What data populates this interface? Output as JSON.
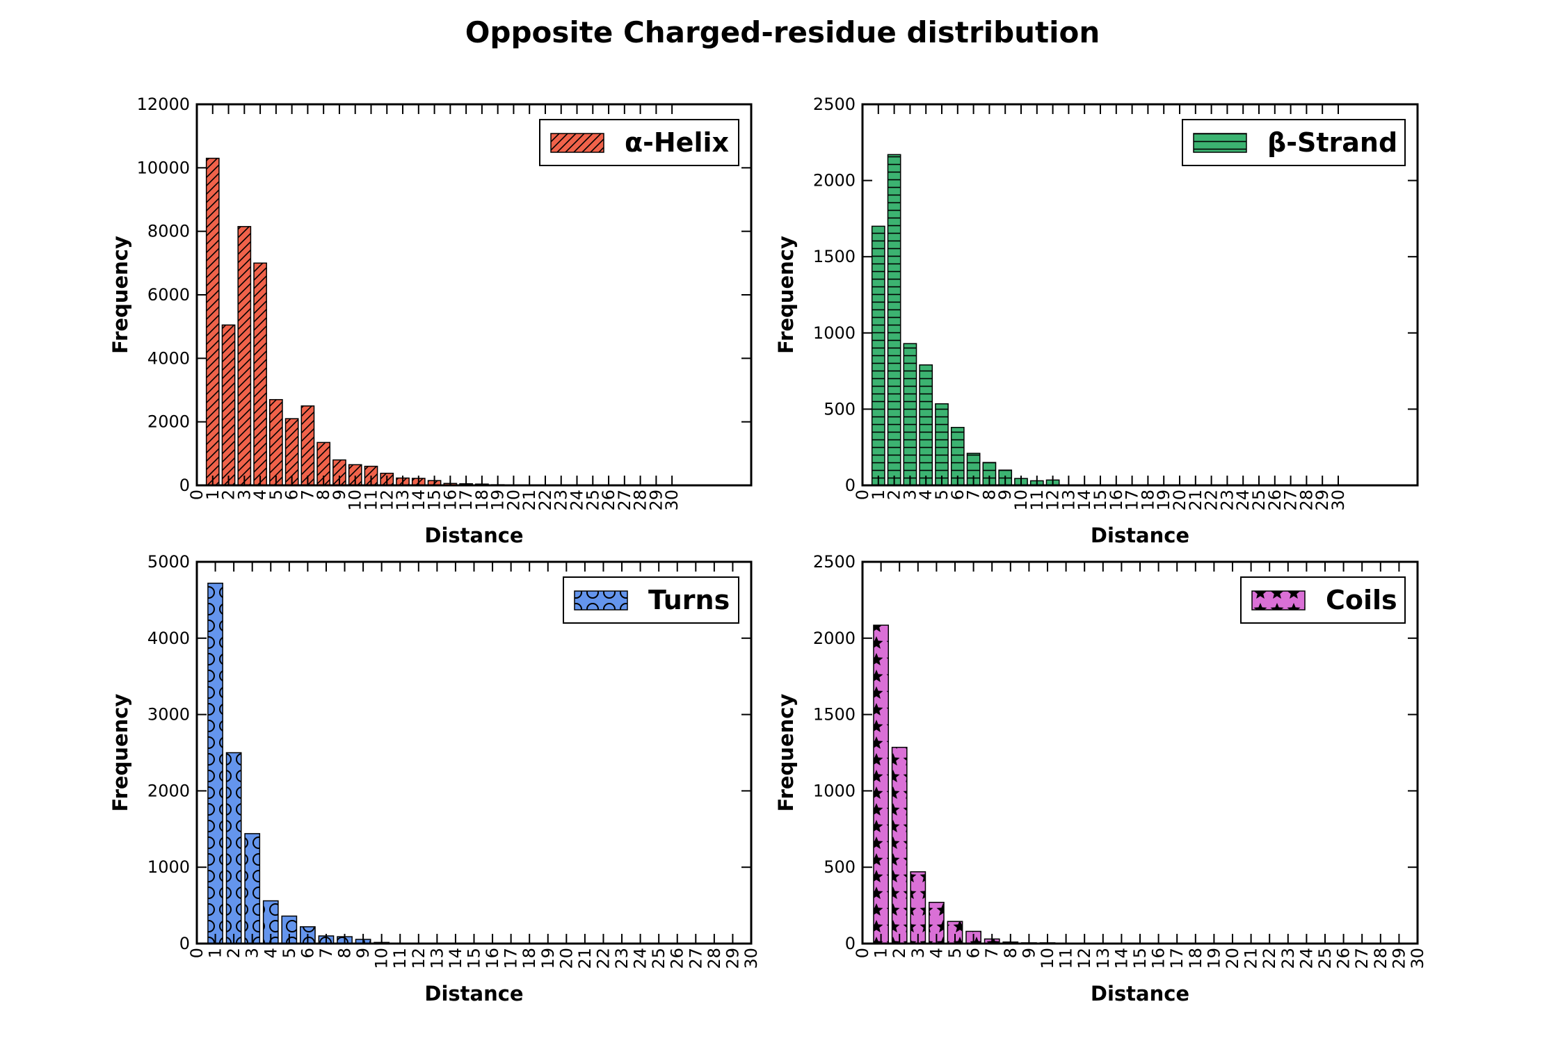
{
  "figure": {
    "title": "Opposite Charged-residue distribution"
  },
  "chart_data": [
    {
      "type": "bar",
      "legend": "α-Helix",
      "legend_position": "top-right",
      "fill": "#f0624a",
      "hatch": "diagonal",
      "xlabel": "Distance",
      "ylabel": "Frequency",
      "ylim": [
        0,
        12000
      ],
      "yticks": [
        0,
        2000,
        4000,
        6000,
        8000,
        10000,
        12000
      ],
      "xlim": [
        0,
        35
      ],
      "xticks": [
        "0",
        "1",
        "2",
        "3",
        "4",
        "5",
        "6",
        "7",
        "8",
        "9",
        "10",
        "11",
        "12",
        "13",
        "14",
        "15",
        "16",
        "17",
        "18",
        "19",
        "20",
        "21",
        "22",
        "23",
        "24",
        "25",
        "26",
        "27",
        "28",
        "29",
        "30"
      ],
      "categories": [
        1,
        2,
        3,
        4,
        5,
        6,
        7,
        8,
        9,
        10,
        11,
        12,
        13,
        14,
        15,
        16,
        17,
        18,
        19,
        20
      ],
      "values": [
        10300,
        5050,
        8150,
        7000,
        2700,
        2100,
        2500,
        1350,
        800,
        650,
        600,
        380,
        230,
        220,
        150,
        60,
        50,
        40,
        20,
        10
      ]
    },
    {
      "type": "bar",
      "legend": "β-Strand",
      "legend_position": "top-right",
      "fill": "#3cb371",
      "hatch": "horizontal",
      "xlabel": "Distance",
      "ylabel": "Frequency",
      "ylim": [
        0,
        2500
      ],
      "yticks": [
        0,
        500,
        1000,
        1500,
        2000,
        2500
      ],
      "xlim": [
        0,
        35
      ],
      "xticks": [
        "0",
        "1",
        "2",
        "3",
        "4",
        "5",
        "6",
        "7",
        "8",
        "9",
        "10",
        "11",
        "12",
        "13",
        "14",
        "15",
        "16",
        "17",
        "18",
        "19",
        "20",
        "21",
        "22",
        "23",
        "24",
        "25",
        "26",
        "27",
        "28",
        "29",
        "30"
      ],
      "categories": [
        1,
        2,
        3,
        4,
        5,
        6,
        7,
        8,
        9,
        10,
        11,
        12
      ],
      "values": [
        1700,
        2170,
        930,
        790,
        535,
        380,
        210,
        150,
        100,
        45,
        30,
        35
      ]
    },
    {
      "type": "bar",
      "legend": "Turns",
      "legend_position": "top-right",
      "fill": "#6495ed",
      "hatch": "circles",
      "xlabel": "Distance",
      "ylabel": "Frequency",
      "ylim": [
        0,
        5000
      ],
      "yticks": [
        0,
        1000,
        2000,
        3000,
        4000,
        5000
      ],
      "xlim": [
        0,
        30
      ],
      "xticks": [
        "0",
        "1",
        "2",
        "3",
        "4",
        "5",
        "6",
        "7",
        "8",
        "9",
        "10",
        "11",
        "12",
        "13",
        "14",
        "15",
        "16",
        "17",
        "18",
        "19",
        "20",
        "21",
        "22",
        "23",
        "24",
        "25",
        "26",
        "27",
        "28",
        "29",
        "30"
      ],
      "categories": [
        1,
        2,
        3,
        4,
        5,
        6,
        7,
        8,
        9,
        10,
        11
      ],
      "values": [
        4720,
        2500,
        1440,
        560,
        360,
        220,
        100,
        90,
        55,
        15,
        5
      ]
    },
    {
      "type": "bar",
      "legend": "Coils",
      "legend_position": "top-right",
      "fill": "#da70d6",
      "hatch": "stars",
      "xlabel": "Distance",
      "ylabel": "Frequency",
      "ylim": [
        0,
        2500
      ],
      "yticks": [
        0,
        500,
        1000,
        1500,
        2000,
        2500
      ],
      "xlim": [
        0,
        30
      ],
      "xticks": [
        "0",
        "1",
        "2",
        "3",
        "4",
        "5",
        "6",
        "7",
        "8",
        "9",
        "10",
        "11",
        "12",
        "13",
        "14",
        "15",
        "16",
        "17",
        "18",
        "19",
        "20",
        "21",
        "22",
        "23",
        "24",
        "25",
        "26",
        "27",
        "28",
        "29",
        "30"
      ],
      "categories": [
        1,
        2,
        3,
        4,
        5,
        6,
        7,
        8,
        9,
        10,
        11,
        12
      ],
      "values": [
        2085,
        1285,
        470,
        270,
        145,
        80,
        30,
        10,
        5,
        5,
        3,
        2
      ]
    }
  ]
}
